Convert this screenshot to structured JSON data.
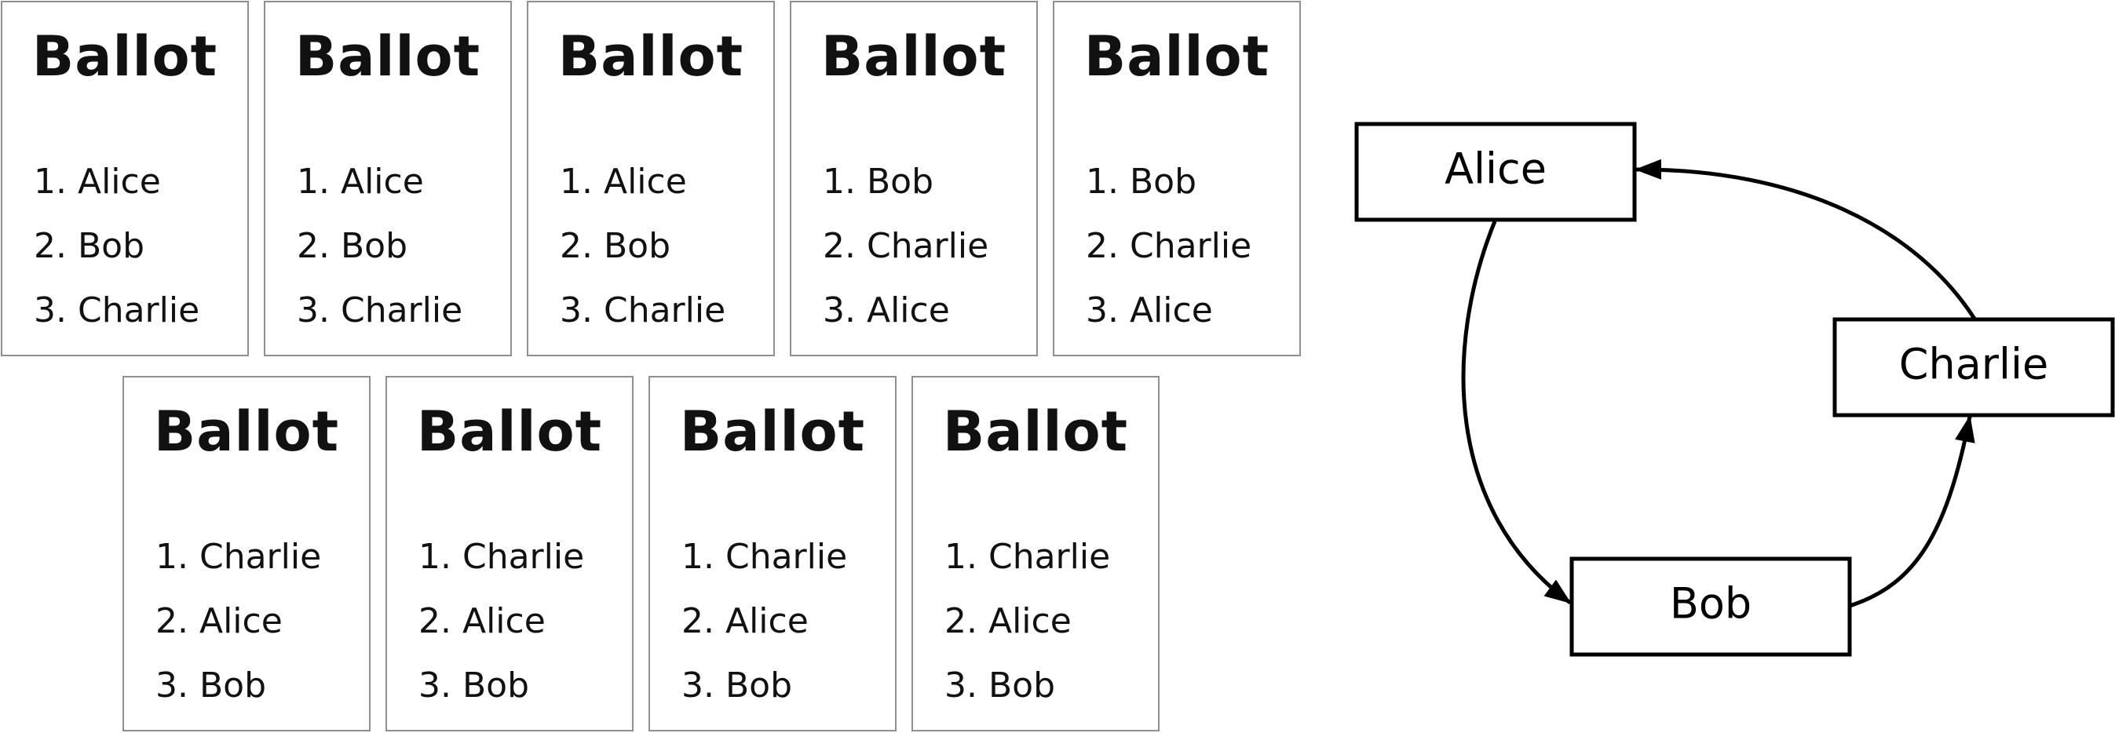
{
  "ballots": [
    {
      "title": "Ballot",
      "items": [
        "1. Alice",
        "2. Bob",
        "3. Charlie"
      ]
    },
    {
      "title": "Ballot",
      "items": [
        "1. Alice",
        "2. Bob",
        "3. Charlie"
      ]
    },
    {
      "title": "Ballot",
      "items": [
        "1. Alice",
        "2. Bob",
        "3. Charlie"
      ]
    },
    {
      "title": "Ballot",
      "items": [
        "1. Bob",
        "2. Charlie",
        "3. Alice"
      ]
    },
    {
      "title": "Ballot",
      "items": [
        "1. Bob",
        "2. Charlie",
        "3. Alice"
      ]
    },
    {
      "title": "Ballot",
      "items": [
        "1. Charlie",
        "2. Alice",
        "3. Bob"
      ]
    },
    {
      "title": "Ballot",
      "items": [
        "1. Charlie",
        "2. Alice",
        "3. Bob"
      ]
    },
    {
      "title": "Ballot",
      "items": [
        "1. Charlie",
        "2. Alice",
        "3. Bob"
      ]
    },
    {
      "title": "Ballot",
      "items": [
        "1. Charlie",
        "2. Alice",
        "3. Bob"
      ]
    }
  ],
  "graph": {
    "nodes": {
      "alice": "Alice",
      "bob": "Bob",
      "charlie": "Charlie"
    },
    "edges": [
      {
        "from": "Alice",
        "to": "Bob"
      },
      {
        "from": "Bob",
        "to": "Charlie"
      },
      {
        "from": "Charlie",
        "to": "Alice"
      }
    ]
  }
}
